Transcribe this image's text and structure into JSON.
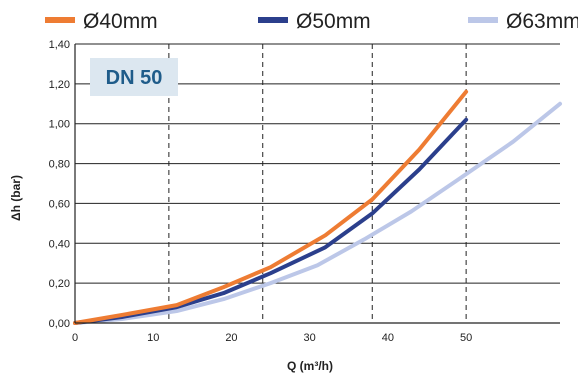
{
  "chart_data": {
    "type": "line",
    "badge": "DN 50",
    "xlabel": "Q (m³/h)",
    "ylabel": "Δh (bar)",
    "xlim": [
      0,
      62
    ],
    "ylim": [
      0,
      1.4
    ],
    "x_ticks": [
      0,
      10,
      20,
      30,
      40,
      50
    ],
    "y_ticks": [
      "0,00",
      "0,20",
      "0,40",
      "0,60",
      "0,80",
      "1,00",
      "1,20",
      "1,40"
    ],
    "y_tick_values": [
      0,
      0.2,
      0.4,
      0.6,
      0.8,
      1.0,
      1.2,
      1.4
    ],
    "vertical_gridlines_dashed": [
      12,
      24,
      38,
      50
    ],
    "grid": true,
    "legend_position": "top",
    "series": [
      {
        "name": "Ø40mm",
        "color": "#ee7c33",
        "x": [
          0,
          6,
          13,
          19,
          25,
          32,
          38,
          44,
          50
        ],
        "y": [
          0,
          0.04,
          0.09,
          0.18,
          0.28,
          0.44,
          0.62,
          0.87,
          1.16
        ]
      },
      {
        "name": "Ø50mm",
        "color": "#2b3f8c",
        "x": [
          0,
          6,
          13,
          19,
          25,
          32,
          38,
          44,
          50
        ],
        "y": [
          0,
          0.03,
          0.08,
          0.15,
          0.25,
          0.38,
          0.55,
          0.77,
          1.02
        ]
      },
      {
        "name": "Ø63mm",
        "color": "#bcc7e8",
        "x": [
          0,
          6,
          13,
          19,
          25,
          31,
          37,
          43,
          49,
          56,
          62
        ],
        "y": [
          0,
          0.02,
          0.06,
          0.12,
          0.2,
          0.29,
          0.42,
          0.56,
          0.72,
          0.91,
          1.1
        ]
      }
    ]
  }
}
